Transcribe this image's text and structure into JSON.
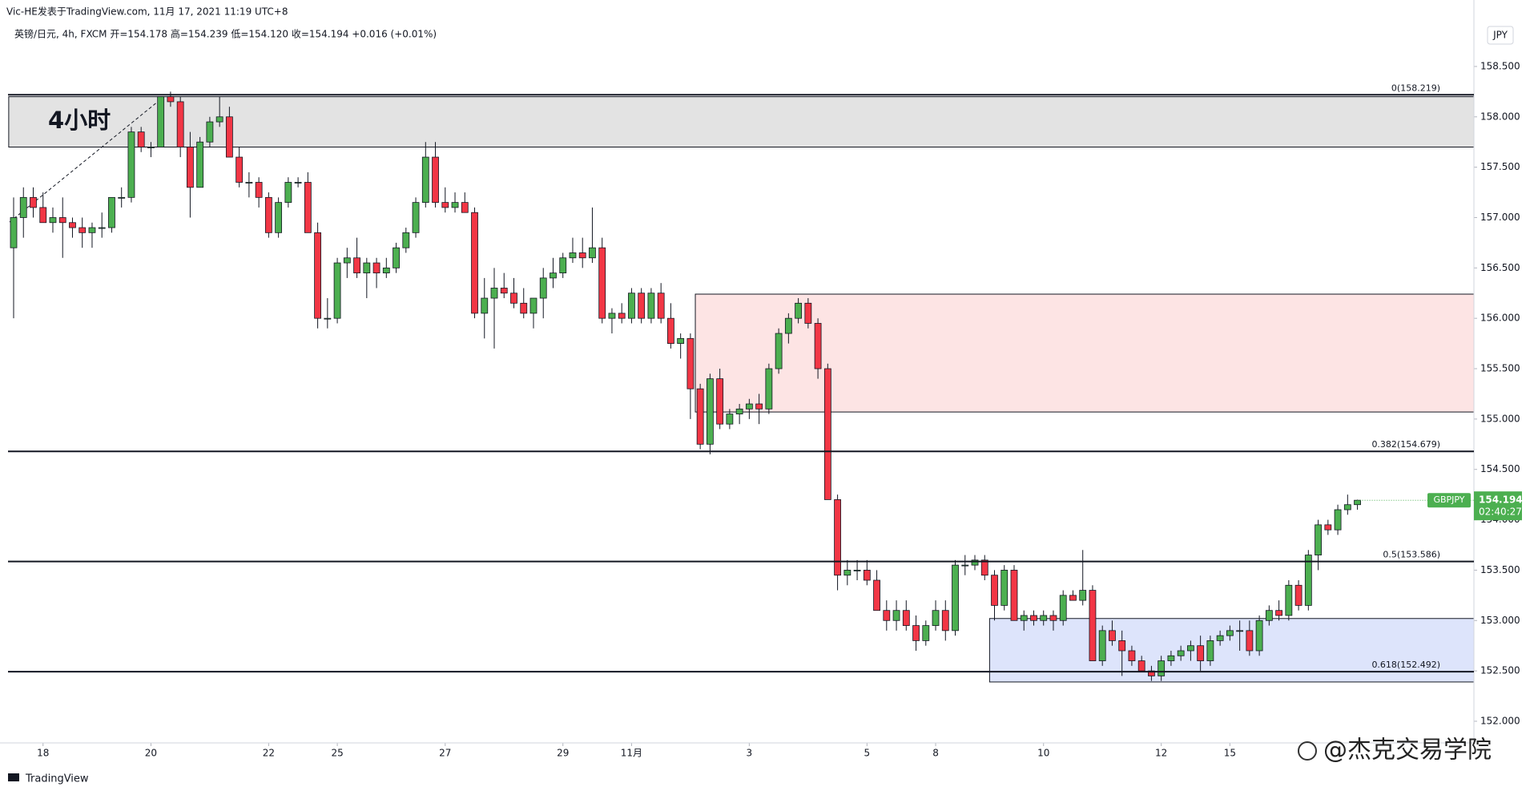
{
  "chart_data": {
    "type": "candlestick",
    "header": "Vic-HE发表于TradingView.com, 11月 17, 2021 11:19 UTC+8",
    "symbol_info": "英镑/日元, 4h, FXCM  开=154.178  高=154.239  低=154.120  收=154.194  +0.016 (+0.01%)",
    "annotation": "4小时",
    "currency": "JPY",
    "symbol": "GBPJPY",
    "last_price": {
      "value": 154.194,
      "label": "154.194"
    },
    "countdown": "02:40:27",
    "footer": "TradingView",
    "watermark": "@杰克交易学院",
    "up_color": "#4caf50",
    "down_color": "#f23645",
    "ylim": [
      151.785,
      158.945
    ],
    "yticks": [
      {
        "value": 152,
        "label": "152.000"
      },
      {
        "value": 152.5,
        "label": "152.500"
      },
      {
        "value": 153,
        "label": "153.000"
      },
      {
        "value": 153.5,
        "label": "153.500"
      },
      {
        "value": 154,
        "label": "154.000"
      },
      {
        "value": 154.5,
        "label": "154.500"
      },
      {
        "value": 155,
        "label": "155.000"
      },
      {
        "value": 155.5,
        "label": "155.500"
      },
      {
        "value": 156,
        "label": "156.000"
      },
      {
        "value": 156.5,
        "label": "156.500"
      },
      {
        "value": 157,
        "label": "157.000"
      },
      {
        "value": 157.5,
        "label": "157.500"
      },
      {
        "value": 158,
        "label": "158.000"
      },
      {
        "value": 158.5,
        "label": "158.500"
      }
    ],
    "xticks": [
      {
        "value": 3,
        "label": "18"
      },
      {
        "value": 14,
        "label": "20"
      },
      {
        "value": 26,
        "label": "22"
      },
      {
        "value": 33,
        "label": "25"
      },
      {
        "value": 44,
        "label": "27"
      },
      {
        "value": 56,
        "label": "29"
      },
      {
        "value": 63,
        "label": "11月"
      },
      {
        "value": 75,
        "label": "3"
      },
      {
        "value": 87,
        "label": "5"
      },
      {
        "value": 94,
        "label": "8"
      },
      {
        "value": 105,
        "label": "10"
      },
      {
        "value": 117,
        "label": "12"
      },
      {
        "value": 124,
        "label": "15"
      }
    ],
    "levels": [
      {
        "value": 158.219,
        "label": "0(158.219)"
      },
      {
        "value": 154.679,
        "label": "0.382(154.679)"
      },
      {
        "value": 153.586,
        "label": "0.5(153.586)"
      },
      {
        "value": 152.492,
        "label": "0.618(152.492)"
      }
    ],
    "zones": [
      {
        "from": 157.7,
        "to": 158.2,
        "start": 0,
        "color": "#e3e3e3"
      },
      {
        "from": 155.07,
        "to": 156.24,
        "start": 70,
        "color": "#fde4e4"
      },
      {
        "from": 152.39,
        "to": 153.02,
        "start": 100,
        "color": "#dde4fb"
      }
    ],
    "candles": [
      [
        156.7,
        157.2,
        156,
        157
      ],
      [
        157,
        157.3,
        156.8,
        157.2
      ],
      [
        157.2,
        157.3,
        157,
        157.1
      ],
      [
        157.1,
        157.25,
        156.95,
        156.95
      ],
      [
        156.95,
        157.1,
        156.85,
        157
      ],
      [
        157,
        157.2,
        156.6,
        156.95
      ],
      [
        156.95,
        157,
        156.8,
        156.9
      ],
      [
        156.9,
        157,
        156.7,
        156.85
      ],
      [
        156.85,
        156.95,
        156.7,
        156.9
      ],
      [
        156.9,
        157.05,
        156.8,
        156.9
      ],
      [
        156.9,
        157.2,
        156.85,
        157.2
      ],
      [
        157.2,
        157.3,
        157.1,
        157.2
      ],
      [
        157.2,
        157.9,
        157.15,
        157.85
      ],
      [
        157.85,
        157.9,
        157.65,
        157.7
      ],
      [
        157.7,
        157.75,
        157.6,
        157.7
      ],
      [
        157.7,
        158.2,
        157.7,
        158.2
      ],
      [
        158.2,
        158.25,
        158.1,
        158.15
      ],
      [
        158.15,
        158.2,
        157.6,
        157.7
      ],
      [
        157.7,
        157.85,
        157,
        157.3
      ],
      [
        157.3,
        157.8,
        157.3,
        157.75
      ],
      [
        157.75,
        158,
        157.7,
        157.95
      ],
      [
        157.95,
        158.2,
        157.9,
        158
      ],
      [
        158,
        158.1,
        157.6,
        157.6
      ],
      [
        157.6,
        157.7,
        157.3,
        157.35
      ],
      [
        157.35,
        157.45,
        157.2,
        157.35
      ],
      [
        157.35,
        157.4,
        157.1,
        157.2
      ],
      [
        157.2,
        157.25,
        156.8,
        156.85
      ],
      [
        156.85,
        157.2,
        156.8,
        157.15
      ],
      [
        157.15,
        157.4,
        157.1,
        157.35
      ],
      [
        157.35,
        157.4,
        157.3,
        157.35
      ],
      [
        157.35,
        157.45,
        156.85,
        156.85
      ],
      [
        156.85,
        156.95,
        155.9,
        156
      ],
      [
        156,
        156.2,
        155.9,
        156
      ],
      [
        156,
        156.6,
        155.95,
        156.55
      ],
      [
        156.55,
        156.7,
        156.4,
        156.6
      ],
      [
        156.6,
        156.8,
        156.4,
        156.45
      ],
      [
        156.45,
        156.6,
        156.2,
        156.55
      ],
      [
        156.55,
        156.6,
        156.3,
        156.45
      ],
      [
        156.45,
        156.6,
        156.4,
        156.5
      ],
      [
        156.5,
        156.75,
        156.45,
        156.7
      ],
      [
        156.7,
        156.9,
        156.65,
        156.85
      ],
      [
        156.85,
        157.2,
        156.8,
        157.15
      ],
      [
        157.15,
        157.75,
        157.1,
        157.6
      ],
      [
        157.6,
        157.75,
        157.1,
        157.15
      ],
      [
        157.15,
        157.3,
        157.05,
        157.1
      ],
      [
        157.1,
        157.25,
        157.05,
        157.15
      ],
      [
        157.15,
        157.25,
        157.05,
        157.05
      ],
      [
        157.05,
        157.1,
        156,
        156.05
      ],
      [
        156.05,
        156.4,
        155.8,
        156.2
      ],
      [
        156.2,
        156.5,
        155.7,
        156.3
      ],
      [
        156.3,
        156.45,
        156.2,
        156.25
      ],
      [
        156.25,
        156.4,
        156.1,
        156.15
      ],
      [
        156.15,
        156.3,
        156,
        156.05
      ],
      [
        156.05,
        156.2,
        155.9,
        156.2
      ],
      [
        156.2,
        156.5,
        156,
        156.4
      ],
      [
        156.4,
        156.6,
        156.3,
        156.45
      ],
      [
        156.45,
        156.65,
        156.4,
        156.6
      ],
      [
        156.6,
        156.8,
        156.55,
        156.65
      ],
      [
        156.65,
        156.8,
        156.5,
        156.6
      ],
      [
        156.6,
        157.1,
        156.55,
        156.7
      ],
      [
        156.7,
        156.8,
        155.95,
        156
      ],
      [
        156,
        156.1,
        155.85,
        156.05
      ],
      [
        156.05,
        156.15,
        155.95,
        156
      ],
      [
        156,
        156.3,
        155.95,
        156.25
      ],
      [
        156.25,
        156.3,
        155.95,
        156
      ],
      [
        156,
        156.3,
        155.95,
        156.25
      ],
      [
        156.25,
        156.35,
        155.95,
        156
      ],
      [
        156,
        156.15,
        155.7,
        155.75
      ],
      [
        155.75,
        155.85,
        155.6,
        155.8
      ],
      [
        155.8,
        155.85,
        155,
        155.3
      ],
      [
        155.3,
        155.35,
        154.7,
        154.75
      ],
      [
        154.75,
        155.45,
        154.65,
        155.4
      ],
      [
        155.4,
        155.5,
        154.9,
        154.95
      ],
      [
        154.95,
        155.1,
        154.9,
        155.05
      ],
      [
        155.05,
        155.15,
        154.95,
        155.1
      ],
      [
        155.1,
        155.2,
        155,
        155.15
      ],
      [
        155.15,
        155.25,
        154.95,
        155.1
      ],
      [
        155.1,
        155.55,
        155.05,
        155.5
      ],
      [
        155.5,
        155.9,
        155.45,
        155.85
      ],
      [
        155.85,
        156.05,
        155.75,
        156
      ],
      [
        156,
        156.2,
        155.95,
        156.15
      ],
      [
        156.15,
        156.2,
        155.9,
        155.95
      ],
      [
        155.95,
        156,
        155.4,
        155.5
      ],
      [
        155.5,
        155.55,
        154.2,
        154.2
      ],
      [
        154.2,
        154.25,
        153.3,
        153.45
      ],
      [
        153.45,
        153.6,
        153.35,
        153.5
      ],
      [
        153.5,
        153.6,
        153.4,
        153.5
      ],
      [
        153.5,
        153.6,
        153.35,
        153.4
      ],
      [
        153.4,
        153.5,
        153.1,
        153.1
      ],
      [
        153.1,
        153.2,
        152.9,
        153
      ],
      [
        153,
        153.2,
        152.9,
        153.1
      ],
      [
        153.1,
        153.2,
        152.9,
        152.95
      ],
      [
        152.95,
        153.05,
        152.7,
        152.8
      ],
      [
        152.8,
        153,
        152.75,
        152.95
      ],
      [
        152.95,
        153.2,
        152.9,
        153.1
      ],
      [
        153.1,
        153.2,
        152.8,
        152.9
      ],
      [
        152.9,
        153.6,
        152.85,
        153.55
      ],
      [
        153.55,
        153.65,
        153.45,
        153.55
      ],
      [
        153.55,
        153.65,
        153.5,
        153.6
      ],
      [
        153.6,
        153.65,
        153.4,
        153.45
      ],
      [
        153.45,
        153.5,
        153,
        153.15
      ],
      [
        153.15,
        153.55,
        153.1,
        153.5
      ],
      [
        153.5,
        153.55,
        153,
        153
      ],
      [
        153,
        153.1,
        152.9,
        153.05
      ],
      [
        153.05,
        153.1,
        152.95,
        153
      ],
      [
        153,
        153.1,
        152.95,
        153.05
      ],
      [
        153.05,
        153.1,
        152.9,
        153
      ],
      [
        153,
        153.3,
        152.95,
        153.25
      ],
      [
        153.25,
        153.3,
        153.2,
        153.2
      ],
      [
        153.2,
        153.7,
        153.15,
        153.3
      ],
      [
        153.3,
        153.35,
        152.6,
        152.6
      ],
      [
        152.6,
        152.95,
        152.55,
        152.9
      ],
      [
        152.9,
        153,
        152.75,
        152.8
      ],
      [
        152.8,
        152.9,
        152.45,
        152.7
      ],
      [
        152.7,
        152.75,
        152.55,
        152.6
      ],
      [
        152.6,
        152.65,
        152.5,
        152.5
      ],
      [
        152.5,
        152.55,
        152.4,
        152.45
      ],
      [
        152.45,
        152.65,
        152.4,
        152.6
      ],
      [
        152.6,
        152.7,
        152.55,
        152.65
      ],
      [
        152.65,
        152.75,
        152.6,
        152.7
      ],
      [
        152.7,
        152.8,
        152.6,
        152.75
      ],
      [
        152.75,
        152.85,
        152.5,
        152.6
      ],
      [
        152.6,
        152.85,
        152.55,
        152.8
      ],
      [
        152.8,
        152.9,
        152.75,
        152.85
      ],
      [
        152.85,
        152.95,
        152.8,
        152.9
      ],
      [
        152.9,
        153,
        152.7,
        152.9
      ],
      [
        152.9,
        153,
        152.65,
        152.7
      ],
      [
        152.7,
        153.05,
        152.65,
        153
      ],
      [
        153,
        153.15,
        152.95,
        153.1
      ],
      [
        153.1,
        153.2,
        153,
        153.05
      ],
      [
        153.05,
        153.4,
        153,
        153.35
      ],
      [
        153.35,
        153.4,
        153.1,
        153.15
      ],
      [
        153.15,
        153.7,
        153.1,
        153.65
      ],
      [
        153.65,
        154,
        153.5,
        153.95
      ],
      [
        153.95,
        154,
        153.85,
        153.9
      ],
      [
        153.9,
        154.15,
        153.85,
        154.1
      ],
      [
        154.1,
        154.25,
        154.05,
        154.15
      ],
      [
        154.15,
        154.2,
        154.1,
        154.194
      ]
    ]
  }
}
